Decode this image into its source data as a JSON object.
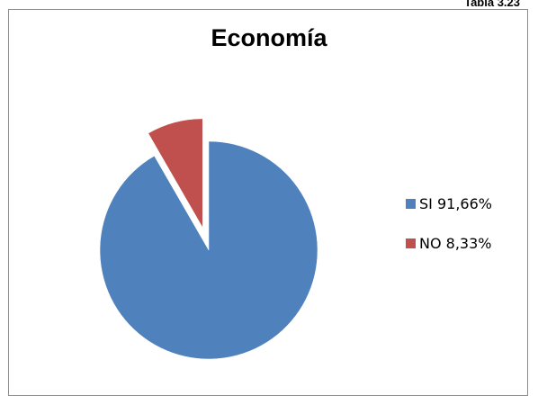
{
  "corner_label": "Tabla 3.23",
  "chart_data": {
    "type": "pie",
    "title": "Economía",
    "slices": [
      {
        "label": "SI 91,66%",
        "value": 91.66,
        "color": "#4f81bd",
        "exploded": false
      },
      {
        "label": "NO 8,33%",
        "value": 8.33,
        "color": "#c0504d",
        "exploded": true
      }
    ],
    "start_angle_deg": 0,
    "direction": "clockwise",
    "legend_position": "right",
    "legend": [
      {
        "label": "SI 91,66%",
        "color": "#4f81bd"
      },
      {
        "label": "NO 8,33%",
        "color": "#c0504d"
      }
    ]
  }
}
